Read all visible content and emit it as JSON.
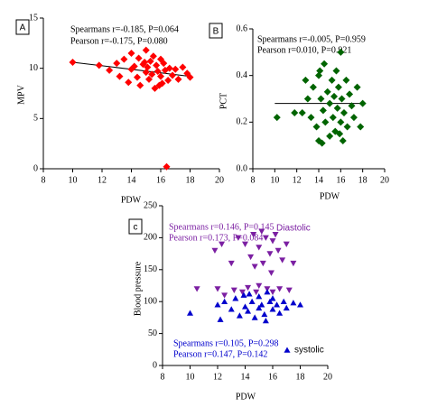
{
  "chart_data": [
    {
      "type": "scatter",
      "panel_label": "A",
      "xlabel": "PDW",
      "ylabel": "MPV",
      "annotations": [
        {
          "text": "Spearmans r=-0.185, P=0.064",
          "color": "#000000"
        },
        {
          "text": "Pearson r=-0.175, P=0.080",
          "color": "#000000"
        }
      ],
      "xlim": [
        8,
        20
      ],
      "ylim": [
        0,
        15
      ],
      "xticks": [
        8,
        10,
        12,
        14,
        16,
        18,
        20
      ],
      "yticks": [
        0,
        5,
        10,
        15
      ],
      "series": [
        {
          "color": "#ff0000",
          "marker": "diamond",
          "x": [
            10,
            11.8,
            12.5,
            13,
            13.2,
            13.5,
            13.8,
            14,
            14,
            14.2,
            14.4,
            14.5,
            14.6,
            14.8,
            15,
            15,
            15.1,
            15.2,
            15.3,
            15.4,
            15.5,
            15.6,
            15.7,
            15.8,
            16,
            16,
            16.1,
            16.2,
            16.3,
            16.5,
            16.6,
            16.8,
            17,
            17.2,
            17.5,
            17.8,
            18,
            14.9,
            15.9,
            16.4
          ],
          "values": [
            10.6,
            10.3,
            9.8,
            10.5,
            9.2,
            10.9,
            8.6,
            11.5,
            9.9,
            10.2,
            9.1,
            11,
            8.3,
            10.4,
            9.6,
            11.8,
            10.1,
            8.9,
            10.7,
            9.4,
            11.2,
            8,
            10.3,
            9.7,
            10.9,
            9.2,
            8.5,
            10.5,
            9.8,
            8.8,
            10,
            9.3,
            9.9,
            8.9,
            10.1,
            9.5,
            9.1,
            10.6,
            8.3,
            0.2
          ]
        }
      ],
      "trend": {
        "x": [
          10,
          18
        ],
        "y": [
          10.6,
          9.2
        ]
      }
    },
    {
      "type": "scatter",
      "panel_label": "B",
      "xlabel": "PDW",
      "ylabel": "PCT",
      "annotations": [
        {
          "text": "Spearmans r=-0.005, P=0.959",
          "color": "#000000"
        },
        {
          "text": "Pearson r=0.010, P=0.921",
          "color": "#000000"
        }
      ],
      "xlim": [
        8,
        20
      ],
      "ylim": [
        0,
        0.6
      ],
      "xticks": [
        8,
        10,
        12,
        14,
        16,
        18,
        20
      ],
      "yticks": [
        {
          "value": 0,
          "label": "0.0"
        },
        0.2,
        0.4,
        0.6
      ],
      "series": [
        {
          "color": "#006400",
          "marker": "diamond",
          "x": [
            10.2,
            11.8,
            12.5,
            12.8,
            13,
            13.3,
            13.5,
            13.8,
            14,
            14,
            14.2,
            14.4,
            14.5,
            14.6,
            14.8,
            15,
            15,
            15.2,
            15.3,
            15.4,
            15.5,
            15.6,
            15.7,
            15.8,
            16,
            16,
            16.1,
            16.2,
            16.3,
            16.5,
            16.6,
            16.8,
            17,
            17.2,
            17.5,
            17.8,
            18,
            14.3,
            15.9,
            14.1
          ],
          "values": [
            0.22,
            0.24,
            0.24,
            0.38,
            0.3,
            0.22,
            0.35,
            0.18,
            0.4,
            0.12,
            0.3,
            0.25,
            0.45,
            0.2,
            0.33,
            0.28,
            0.14,
            0.38,
            0.22,
            0.31,
            0.16,
            0.42,
            0.26,
            0.35,
            0.2,
            0.5,
            0.3,
            0.12,
            0.24,
            0.38,
            0.18,
            0.32,
            0.27,
            0.22,
            0.35,
            0.18,
            0.28,
            0.11,
            0.15,
            0.42
          ]
        }
      ],
      "trend": {
        "x": [
          10,
          18
        ],
        "y": [
          0.28,
          0.28
        ]
      }
    },
    {
      "type": "scatter",
      "panel_label": "c",
      "xlabel": "PDW",
      "ylabel": "Blood pressure",
      "annotations": [
        {
          "text": "Spearmans r=0.146, P=0.145",
          "color": "#7b1fa2"
        },
        {
          "text": "Pearson r=0.173, P=0.084",
          "color": "#7b1fa2"
        },
        {
          "text": "Spearmans r=0.105, P=0.298",
          "color": "#0000cc"
        },
        {
          "text": "Pearson r=0.147, P=0.142",
          "color": "#0000cc"
        }
      ],
      "xlim": [
        8,
        20
      ],
      "ylim": [
        0,
        250
      ],
      "xticks": [
        8,
        10,
        12,
        14,
        16,
        18,
        20
      ],
      "yticks": [
        0,
        50,
        100,
        150,
        200,
        250
      ],
      "series": [
        {
          "name": "Diastolic",
          "color": "#7b1fa2",
          "marker": "triangle-down",
          "legend_marker": false,
          "x": [
            11.8,
            12,
            12.3,
            12.5,
            13,
            13.2,
            13.5,
            13.8,
            14,
            14.2,
            14.4,
            14.6,
            14.8,
            15,
            15,
            15.2,
            15.3,
            15.5,
            15.6,
            15.8,
            16,
            16,
            16.2,
            16.4,
            16.5,
            16.7,
            17,
            17.2,
            17.5,
            10.5,
            14.7,
            15.9
          ],
          "values": [
            180,
            120,
            190,
            110,
            160,
            118,
            200,
            115,
            190,
            122,
            170,
            205,
            115,
            185,
            125,
            210,
            160,
            200,
            120,
            175,
            195,
            115,
            205,
            180,
            120,
            165,
            190,
            118,
            160,
            120,
            155,
            145
          ]
        },
        {
          "name": "systolic",
          "color": "#0000cc",
          "marker": "triangle-up",
          "legend_marker": true,
          "x": [
            10,
            12,
            12.2,
            12.5,
            13,
            13.3,
            13.6,
            13.9,
            14,
            14.2,
            14.5,
            14.7,
            15,
            15,
            15.2,
            15.4,
            15.6,
            15.8,
            16,
            16,
            16.3,
            16.5,
            16.8,
            17,
            17.5,
            18,
            14.3,
            15.5
          ],
          "values": [
            82,
            95,
            72,
            100,
            88,
            105,
            78,
            110,
            92,
            85,
            100,
            75,
            108,
            90,
            95,
            80,
            115,
            100,
            88,
            105,
            95,
            82,
            100,
            90,
            98,
            95,
            112,
            70
          ]
        }
      ]
    }
  ]
}
